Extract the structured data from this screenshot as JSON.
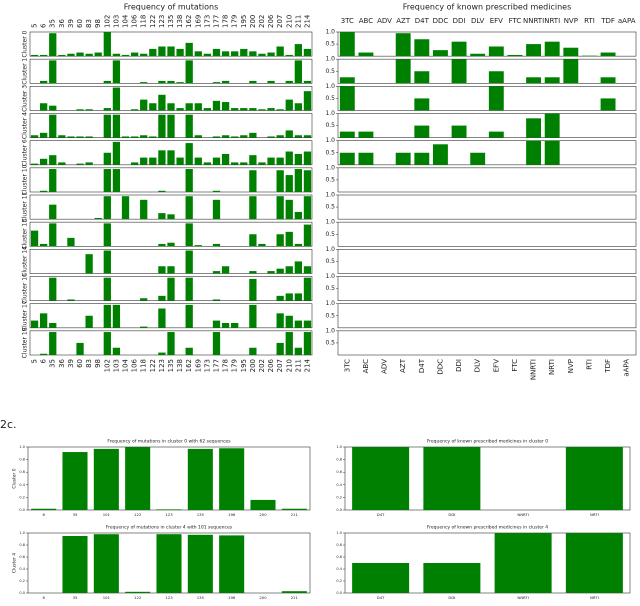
{
  "figure_label": "2c.",
  "chart_data": [
    {
      "type": "bar",
      "layout": "rows",
      "title": "Frequency of mutations",
      "color": "#008000",
      "ylim": [
        0,
        1
      ],
      "categories": [
        "5",
        "6",
        "35",
        "36",
        "39",
        "60",
        "83",
        "98",
        "102",
        "103",
        "104",
        "106",
        "118",
        "122",
        "123",
        "135",
        "138",
        "162",
        "169",
        "173",
        "177",
        "178",
        "179",
        "195",
        "200",
        "202",
        "206",
        "207",
        "210",
        "211",
        "214"
      ],
      "series": [
        {
          "name": "Cluster 0",
          "values": [
            0.05,
            0.05,
            0.95,
            0.05,
            0.1,
            0.15,
            0.1,
            0.15,
            1.0,
            0.1,
            0.05,
            0.15,
            0.1,
            0.3,
            0.4,
            0.4,
            0.3,
            0.55,
            0.2,
            0.1,
            0.3,
            0.2,
            0.2,
            0.3,
            0.2,
            0.1,
            0.15,
            0.4,
            0.05,
            0.5,
            0.3
          ]
        },
        {
          "name": "Cluster 1",
          "values": [
            0,
            0.1,
            0.95,
            0,
            0,
            0,
            0,
            0,
            0.1,
            0.95,
            0,
            0,
            0.05,
            0,
            0.1,
            0.1,
            0.05,
            0.95,
            0,
            0,
            0.05,
            0.1,
            0,
            0,
            0.1,
            0,
            0.1,
            0,
            0.1,
            0.95,
            0.1
          ]
        },
        {
          "name": "Cluster 3",
          "values": [
            0,
            0.3,
            0.2,
            0,
            0,
            0.05,
            0.05,
            0,
            0.1,
            0.95,
            0,
            0.05,
            0.45,
            0.3,
            0.65,
            0.3,
            0.1,
            0.3,
            0.3,
            0.1,
            0.4,
            0.35,
            0.1,
            0.1,
            0.1,
            0.05,
            0.1,
            0.05,
            0.45,
            0.3,
            0.8
          ]
        },
        {
          "name": "Cluster 4",
          "values": [
            0.1,
            0.2,
            0.95,
            0.1,
            0.05,
            0.05,
            0.05,
            0,
            0.95,
            0.95,
            0.05,
            0.05,
            0.1,
            0.05,
            0.95,
            0.95,
            0,
            0.95,
            0.1,
            0,
            0.05,
            0.1,
            0.05,
            0.1,
            0.2,
            0,
            0.05,
            0.1,
            0.3,
            0.1,
            0.1
          ]
        },
        {
          "name": "Cluster 6",
          "values": [
            0.05,
            0.25,
            0.4,
            0.1,
            0,
            0.05,
            0.1,
            0,
            0.5,
            0.95,
            0,
            0.1,
            0.3,
            0.3,
            0.6,
            0.6,
            0.3,
            0.9,
            0.3,
            0.1,
            0.3,
            0.45,
            0.1,
            0.1,
            0.4,
            0.1,
            0.3,
            0.3,
            0.55,
            0.45,
            0.55
          ]
        },
        {
          "name": "Cluster 10",
          "values": [
            0,
            0.05,
            0.95,
            0,
            0,
            0,
            0,
            0,
            0.95,
            0.95,
            0,
            0,
            0,
            0,
            0.05,
            0,
            0,
            0.95,
            0,
            0,
            0.05,
            0,
            0,
            0,
            0.9,
            0,
            0,
            0.9,
            0.7,
            0.95,
            0.9
          ]
        },
        {
          "name": "Cluster 11",
          "values": [
            0,
            0,
            0.6,
            0,
            0,
            0,
            0,
            0.05,
            0.95,
            0,
            0.95,
            0,
            0.8,
            0,
            0.25,
            0.2,
            0,
            0.95,
            0,
            0,
            0.8,
            0,
            0,
            0,
            0.95,
            0,
            0,
            0.95,
            0.8,
            0.3,
            0.95
          ]
        },
        {
          "name": "Cluster 13",
          "values": [
            0.65,
            0.1,
            0.95,
            0,
            0.35,
            0,
            0,
            0,
            0.95,
            0,
            0,
            0,
            0,
            0,
            0.1,
            0.15,
            0,
            0.95,
            0.05,
            0,
            0.1,
            0,
            0,
            0,
            0.5,
            0.1,
            0,
            0.5,
            0.6,
            0.1,
            0.9
          ]
        },
        {
          "name": "Cluster 14",
          "values": [
            0,
            0,
            0,
            0,
            0,
            0,
            0.8,
            0,
            0.95,
            0,
            0,
            0,
            0,
            0,
            0.3,
            0.3,
            0,
            0.95,
            0,
            0,
            0.1,
            0.3,
            0,
            0,
            0.1,
            0,
            0.1,
            0.2,
            0.3,
            0.5,
            0.3
          ]
        },
        {
          "name": "Cluster 16",
          "values": [
            0,
            0,
            0.95,
            0,
            0.05,
            0,
            0,
            0,
            0.95,
            0,
            0,
            0,
            0.1,
            0,
            0.2,
            0.95,
            0,
            0.95,
            0,
            0,
            0.05,
            0,
            0,
            0,
            0.9,
            0,
            0,
            0.2,
            0.3,
            0.3,
            0.95
          ]
        },
        {
          "name": "Cluster 17",
          "values": [
            0.3,
            0.6,
            0.2,
            0,
            0,
            0,
            0.5,
            0,
            0.95,
            0.95,
            0,
            0,
            0.05,
            0,
            0.8,
            0,
            0,
            0.95,
            0,
            0,
            0.3,
            0.2,
            0.2,
            0,
            0.95,
            0,
            0,
            0.6,
            0.5,
            0.3,
            0.3
          ]
        },
        {
          "name": "Cluster 19",
          "values": [
            0,
            0.05,
            0.95,
            0,
            0,
            0.5,
            0,
            0,
            0.95,
            0.3,
            0,
            0,
            0,
            0,
            0.1,
            0.95,
            0,
            0.3,
            0,
            0,
            0.95,
            0,
            0,
            0,
            0.3,
            0,
            0,
            0.5,
            0.95,
            0.3,
            0.95
          ]
        }
      ]
    },
    {
      "type": "bar",
      "layout": "rows",
      "title": "Frequency of known prescribed medicines",
      "color": "#008000",
      "ylim": [
        0,
        1
      ],
      "yticks": [
        0.5,
        {
          "value": 1,
          "label": "1.0"
        }
      ],
      "categories": [
        "3TC",
        "ABC",
        "ADV",
        "AZT",
        "D4T",
        "DDC",
        "DDI",
        "DLV",
        "EFV",
        "FTC",
        "NNRTI",
        "NRTI",
        "NVP",
        "RTI",
        "TDF",
        "aAPA"
      ],
      "series": [
        {
          "values": [
            1.0,
            0.15,
            0,
            0.95,
            0.7,
            0.25,
            0.6,
            0.1,
            0.4,
            0.05,
            0.5,
            0.6,
            0.35,
            0.02,
            0.15,
            0
          ]
        },
        {
          "values": [
            0.25,
            0,
            0,
            1.0,
            0.5,
            0,
            1.0,
            0,
            0.5,
            0,
            0.25,
            0.25,
            1.0,
            0,
            0.25,
            0
          ]
        },
        {
          "values": [
            1.0,
            0,
            0,
            0,
            0.5,
            0,
            0,
            0,
            1.0,
            0,
            0,
            0,
            0,
            0,
            0.5,
            0
          ]
        },
        {
          "values": [
            0.25,
            0.25,
            0,
            0,
            0.5,
            0,
            0.5,
            0,
            0.25,
            0,
            0.8,
            1.0,
            0,
            0,
            0,
            0
          ]
        },
        {
          "values": [
            0.5,
            0.5,
            0,
            0.5,
            0.5,
            0.85,
            0,
            0.5,
            0,
            0,
            1.0,
            1.0,
            0,
            0,
            0,
            0
          ]
        },
        {
          "values": [
            null,
            null,
            null,
            null,
            null,
            null,
            null,
            null,
            null,
            null,
            null,
            null,
            null,
            null,
            null,
            null
          ]
        },
        {
          "values": [
            null,
            null,
            null,
            null,
            null,
            null,
            null,
            null,
            null,
            null,
            null,
            null,
            null,
            null,
            null,
            null
          ]
        },
        {
          "values": [
            null,
            null,
            null,
            null,
            null,
            null,
            null,
            null,
            null,
            null,
            null,
            null,
            null,
            null,
            null,
            null
          ]
        },
        {
          "values": [
            null,
            null,
            null,
            null,
            null,
            null,
            null,
            null,
            null,
            null,
            null,
            null,
            null,
            null,
            null,
            null
          ]
        },
        {
          "values": [
            null,
            null,
            null,
            null,
            null,
            null,
            null,
            null,
            null,
            null,
            null,
            null,
            null,
            null,
            null,
            null
          ]
        },
        {
          "values": [
            null,
            null,
            null,
            null,
            null,
            null,
            null,
            null,
            null,
            null,
            null,
            null,
            null,
            null,
            null,
            null
          ]
        },
        {
          "values": [
            null,
            null,
            null,
            null,
            null,
            null,
            null,
            null,
            null,
            null,
            null,
            null,
            null,
            null,
            null,
            null
          ]
        }
      ]
    },
    {
      "type": "bar",
      "title": "Frequency of mutations in cluster 0 with 62 sequences",
      "ylabel": "Cluster 0",
      "color": "#008000",
      "categories": [
        "6",
        "35",
        "101",
        "122",
        "123",
        "135",
        "196",
        "200",
        "211"
      ],
      "values": [
        0.02,
        0.92,
        0.97,
        1.0,
        0.01,
        0.97,
        0.98,
        0.16,
        0.02
      ],
      "ylim": [
        0,
        1
      ],
      "yticks": [
        {
          "value": 0,
          "label": "0.0"
        },
        0.2,
        0.4,
        0.6,
        0.8,
        {
          "value": 1,
          "label": "1.0"
        }
      ]
    },
    {
      "type": "bar",
      "title": "Frequency of known prescribed medicines in cluster 0",
      "color": "#008000",
      "categories": [
        "D4T",
        "DDI",
        "NNRTI",
        "NRTI"
      ],
      "values": [
        1.0,
        1.0,
        0,
        1.0
      ],
      "ylim": [
        0,
        1
      ],
      "yticks": [
        {
          "value": 0,
          "label": "0.0"
        },
        0.2,
        0.4,
        0.6,
        0.8,
        {
          "value": 1,
          "label": "1.0"
        }
      ]
    },
    {
      "type": "bar",
      "title": "Frequency of mutations in cluster 4 with 101 sequences",
      "ylabel": "Cluster 4",
      "color": "#008000",
      "categories": [
        "6",
        "35",
        "101",
        "122",
        "123",
        "135",
        "196",
        "200",
        "211"
      ],
      "values": [
        0,
        0.95,
        0.98,
        0.02,
        0.98,
        0.97,
        0.96,
        0,
        0.03
      ],
      "ylim": [
        0,
        1
      ],
      "yticks": [
        {
          "value": 0,
          "label": "0.0"
        },
        0.2,
        0.4,
        0.6,
        0.8,
        {
          "value": 1,
          "label": "1.0"
        }
      ]
    },
    {
      "type": "bar",
      "title": "Frequency of known prescribed medicines in cluster 4",
      "color": "#008000",
      "categories": [
        "D4T",
        "DDI",
        "NNRTI",
        "NRTI"
      ],
      "values": [
        0.5,
        0.5,
        1.0,
        1.0
      ],
      "ylim": [
        0,
        1
      ],
      "yticks": [
        {
          "value": 0,
          "label": "0.0"
        },
        0.2,
        0.4,
        0.6,
        0.8,
        {
          "value": 1,
          "label": "1.0"
        }
      ]
    }
  ]
}
